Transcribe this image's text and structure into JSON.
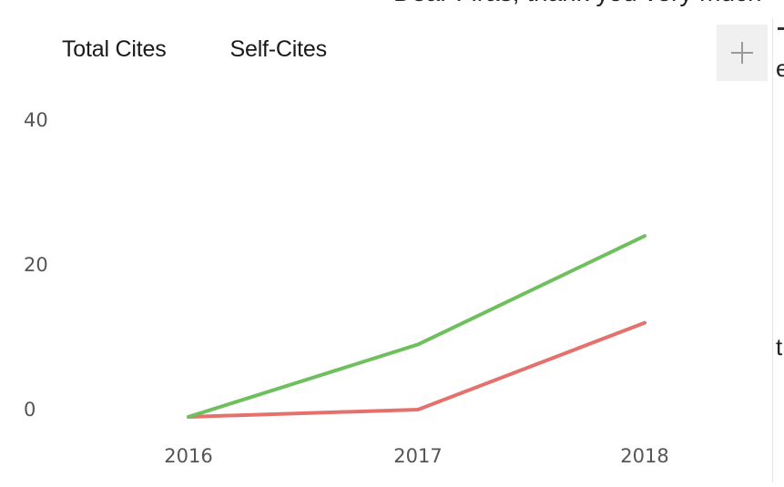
{
  "background": {
    "fragment_text": "Dear Firas, thank you very much",
    "right_char_1": "e",
    "right_char_2": "t"
  },
  "tabs": [
    {
      "label": "Total Cites"
    },
    {
      "label": "Self-Cites"
    }
  ],
  "add_button": {
    "icon": "plus-icon"
  },
  "chart_data": {
    "type": "line",
    "x": [
      "2016",
      "2017",
      "2018"
    ],
    "series": [
      {
        "name": "Total Cites",
        "color": "#6fbf5f",
        "values": [
          -1,
          9,
          24
        ]
      },
      {
        "name": "Self-Cites",
        "color": "#e4716b",
        "values": [
          -1,
          0,
          12
        ]
      }
    ],
    "ylim": [
      0,
      40
    ],
    "yticks": [
      "40",
      "20",
      "0"
    ],
    "xticks": [
      "2016",
      "2017",
      "2018"
    ],
    "grid": false,
    "legend": "none",
    "title": "",
    "xlabel": "",
    "ylabel": ""
  }
}
